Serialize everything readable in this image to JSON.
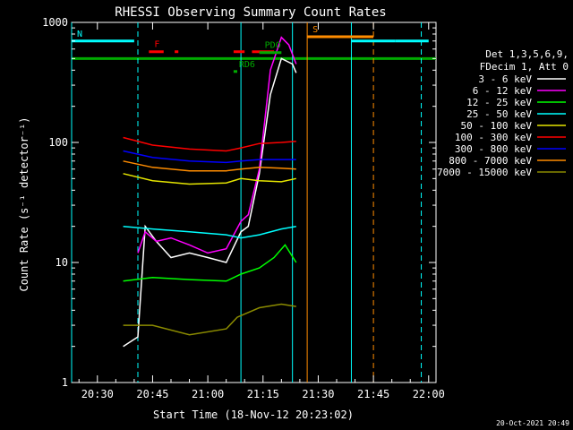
{
  "chart_data": {
    "type": "line",
    "title": "RHESSI Observing Summary Count Rates",
    "xlabel": "Start Time (18-Nov-12 20:23:02)",
    "ylabel": "Count Rate (s⁻¹ detector⁻¹)",
    "ylog": true,
    "xlim": [
      "20:23",
      "22:02"
    ],
    "ylim": [
      1,
      1000
    ],
    "grid": false,
    "legend_position": "right",
    "x_ticks": [
      "20:30",
      "20:45",
      "21:00",
      "21:15",
      "21:30",
      "21:45",
      "22:00"
    ],
    "y_ticks": [
      "1",
      "10",
      "100",
      "1000"
    ],
    "legend_header": [
      "Det 1,3,5,6,9,",
      "FDecim 1, Att 0"
    ],
    "footer_date": "20-Oct-2021 20:49",
    "series": [
      {
        "name": "3 - 6 keV",
        "color": "#ffffff",
        "x": [
          "20:37",
          "20:41",
          "20:43",
          "20:46",
          "20:50",
          "20:55",
          "21:00",
          "21:05",
          "21:09",
          "21:11",
          "21:14",
          "21:17",
          "21:20",
          "21:23",
          "21:24"
        ],
        "y": [
          2,
          2.4,
          20,
          15,
          11,
          12,
          11,
          10,
          18,
          20,
          55,
          250,
          500,
          450,
          380
        ]
      },
      {
        "name": "6 - 12 keV",
        "color": "#ff00ff",
        "x": [
          "20:41",
          "20:43",
          "20:46",
          "20:50",
          "20:55",
          "21:00",
          "21:05",
          "21:09",
          "21:11",
          "21:14",
          "21:17",
          "21:20",
          "21:22",
          "21:24"
        ],
        "y": [
          12,
          18,
          15,
          16,
          14,
          12,
          13,
          22,
          25,
          60,
          400,
          750,
          650,
          450
        ]
      },
      {
        "name": "12 - 25 keV",
        "color": "#00ff00",
        "x": [
          "20:37",
          "20:45",
          "20:55",
          "21:05",
          "21:09",
          "21:14",
          "21:18",
          "21:21",
          "21:24"
        ],
        "y": [
          7,
          7.5,
          7.2,
          7,
          8,
          9,
          11,
          14,
          10
        ]
      },
      {
        "name": "25 - 50 keV",
        "color": "#00ffff",
        "x": [
          "20:37",
          "20:45",
          "20:55",
          "21:05",
          "21:09",
          "21:14",
          "21:20",
          "21:24"
        ],
        "y": [
          20,
          19,
          18,
          17,
          16,
          17,
          19,
          20
        ]
      },
      {
        "name": "50 - 100 keV",
        "color": "#e5e500",
        "x": [
          "20:37",
          "20:45",
          "20:55",
          "21:05",
          "21:09",
          "21:14",
          "21:20",
          "21:24"
        ],
        "y": [
          55,
          48,
          45,
          46,
          50,
          48,
          47,
          50
        ]
      },
      {
        "name": "100 - 300 keV",
        "color": "#ff0000",
        "x": [
          "20:37",
          "20:45",
          "20:55",
          "21:05",
          "21:09",
          "21:14",
          "21:20",
          "21:24"
        ],
        "y": [
          110,
          95,
          88,
          85,
          90,
          98,
          100,
          102
        ]
      },
      {
        "name": "300 - 800 keV",
        "color": "#0000ff",
        "x": [
          "20:37",
          "20:45",
          "20:55",
          "21:05",
          "21:09",
          "21:14",
          "21:20",
          "21:24"
        ],
        "y": [
          85,
          75,
          70,
          68,
          70,
          72,
          72,
          72
        ]
      },
      {
        "name": "800 - 7000 keV",
        "color": "#ff8c00",
        "x": [
          "20:37",
          "20:45",
          "20:55",
          "21:05",
          "21:09",
          "21:14",
          "21:20",
          "21:24"
        ],
        "y": [
          70,
          62,
          58,
          58,
          60,
          62,
          61,
          60
        ]
      },
      {
        "name": "7000 - 15000 keV",
        "color": "#8b8b00",
        "x": [
          "20:37",
          "20:45",
          "20:55",
          "21:05",
          "21:08",
          "21:14",
          "21:20",
          "21:24"
        ],
        "y": [
          3,
          3,
          2.5,
          2.8,
          3.5,
          4.2,
          4.5,
          4.3
        ]
      }
    ],
    "annotations": [
      {
        "label": "N",
        "color": "#00ffff",
        "y": 700,
        "segments": [
          [
            "20:23",
            "20:40"
          ],
          [
            "21:39",
            "21:51"
          ],
          [
            "21:51",
            "22:00"
          ]
        ]
      },
      {
        "label": "F",
        "color": "#ff0000",
        "y": 570,
        "segments": [
          [
            "20:44",
            "20:48"
          ],
          [
            "20:51",
            "20:52"
          ],
          [
            "21:07",
            "21:10"
          ],
          [
            "21:12",
            "21:18"
          ]
        ]
      },
      {
        "label": "S",
        "color": "#ff8c00",
        "y": 760,
        "segments": [
          [
            "21:27",
            "21:45"
          ]
        ]
      },
      {
        "label": "PDO",
        "color": "#00aa00",
        "y": 560,
        "segments": [
          [
            "21:14",
            "21:20"
          ]
        ]
      },
      {
        "label": "RD6",
        "color": "#00aa00",
        "y": 390,
        "segments": [
          [
            "21:07",
            "21:08"
          ]
        ]
      }
    ],
    "reference_line": {
      "color": "#00aa00",
      "y": 500,
      "x": [
        "20:23",
        "22:02"
      ]
    },
    "vertical_markers": [
      {
        "x": "20:23",
        "color": "#00ffff",
        "style": "solid"
      },
      {
        "x": "20:41",
        "color": "#00ffff",
        "style": "dashed"
      },
      {
        "x": "21:09",
        "color": "#00ffff",
        "style": "solid"
      },
      {
        "x": "21:23",
        "color": "#00ffff",
        "style": "solid"
      },
      {
        "x": "21:27",
        "color": "#ff8c00",
        "style": "solid"
      },
      {
        "x": "21:39",
        "color": "#00ffff",
        "style": "solid"
      },
      {
        "x": "21:45",
        "color": "#ff8c00",
        "style": "dashed"
      },
      {
        "x": "21:58",
        "color": "#00ffff",
        "style": "dashed"
      }
    ]
  }
}
